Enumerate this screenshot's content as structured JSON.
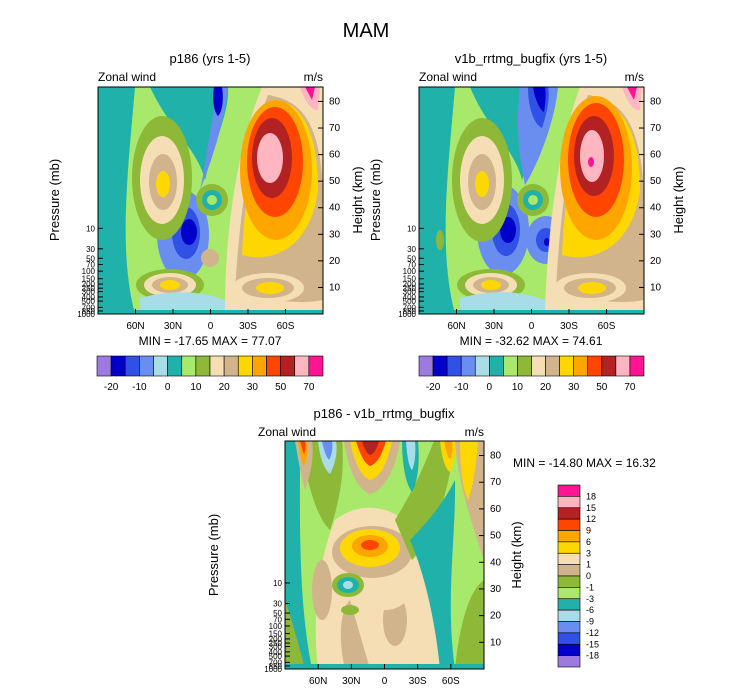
{
  "figure": {
    "title": "MAM"
  },
  "chart_data": [
    {
      "type": "heatmap",
      "title": "p186 (yrs 1-5)",
      "left_label": "Zonal wind",
      "right_label": "m/s",
      "ylabel": "Pressure (mb)",
      "ylabel_right": "Height (km)",
      "x_ticks": [
        "60N",
        "30N",
        "0",
        "30S",
        "60S"
      ],
      "pressure_ticks": [
        "10",
        "30",
        "50",
        "70",
        "100",
        "150",
        "200",
        "250",
        "300",
        "400",
        "500",
        "700",
        "850",
        "1000"
      ],
      "height_ticks": [
        "10",
        "20",
        "30",
        "40",
        "50",
        "60",
        "70",
        "80"
      ],
      "stats": "MIN = -17.65  MAX =  77.07",
      "levels": [
        "-20",
        "-10",
        "0",
        "10",
        "20",
        "30",
        "50",
        "70"
      ],
      "colors": [
        "#9C7AE0",
        "#0000C8",
        "#3050E6",
        "#6A8EF0",
        "#A8DCE6",
        "#20B2AA",
        "#A8E86A",
        "#8DB838",
        "#F5DEB3",
        "#D2B48C",
        "#FFD700",
        "#FFA500",
        "#FF4500",
        "#B22222",
        "#FFB6C1",
        "#FF1493"
      ],
      "features": [
        {
          "kind": "jet",
          "lat": -38,
          "z": 57,
          "value": 77
        },
        {
          "kind": "jet",
          "lat": 43,
          "z": 50,
          "value": 28
        },
        {
          "kind": "jet",
          "lat": 30,
          "z": 10,
          "value": 27
        },
        {
          "kind": "jet",
          "lat": -38,
          "z": 11,
          "value": 24
        },
        {
          "kind": "easterly",
          "lat": 10,
          "z": 30,
          "value": -18
        },
        {
          "kind": "easterly",
          "lat": 0,
          "z": 85,
          "value": -16
        }
      ]
    },
    {
      "type": "heatmap",
      "title": "v1b_rrtmg_bugfix (yrs 1-5)",
      "left_label": "Zonal wind",
      "right_label": "m/s",
      "ylabel": "Pressure (mb)",
      "ylabel_right": "Height (km)",
      "x_ticks": [
        "60N",
        "30N",
        "0",
        "30S",
        "60S"
      ],
      "pressure_ticks": [
        "10",
        "30",
        "50",
        "70",
        "100",
        "150",
        "200",
        "250",
        "300",
        "400",
        "500",
        "700",
        "850",
        "1000"
      ],
      "height_ticks": [
        "10",
        "20",
        "30",
        "40",
        "50",
        "60",
        "70",
        "80"
      ],
      "stats": "MIN = -32.62  MAX =  74.61",
      "levels": [
        "-20",
        "-10",
        "0",
        "10",
        "20",
        "30",
        "50",
        "70"
      ],
      "colors": [
        "#9C7AE0",
        "#0000C8",
        "#3050E6",
        "#6A8EF0",
        "#A8DCE6",
        "#20B2AA",
        "#A8E86A",
        "#8DB838",
        "#F5DEB3",
        "#D2B48C",
        "#FFD700",
        "#FFA500",
        "#FF4500",
        "#B22222",
        "#FFB6C1",
        "#FF1493"
      ],
      "features": [
        {
          "kind": "jet",
          "lat": -38,
          "z": 60,
          "value": 74
        },
        {
          "kind": "jet",
          "lat": 43,
          "z": 52,
          "value": 26
        },
        {
          "kind": "jet",
          "lat": 30,
          "z": 10,
          "value": 27
        },
        {
          "kind": "jet",
          "lat": -38,
          "z": 11,
          "value": 24
        },
        {
          "kind": "easterly",
          "lat": 10,
          "z": 30,
          "value": -20
        },
        {
          "kind": "easterly",
          "lat": -5,
          "z": 28,
          "value": -32
        },
        {
          "kind": "easterly",
          "lat": 0,
          "z": 85,
          "value": -22
        }
      ]
    },
    {
      "type": "heatmap",
      "title": "p186 - v1b_rrtmg_bugfix",
      "left_label": "Zonal wind",
      "right_label": "m/s",
      "ylabel": "Pressure (mb)",
      "ylabel_right": "Height (km)",
      "x_ticks": [
        "60N",
        "30N",
        "0",
        "30S",
        "60S"
      ],
      "pressure_ticks": [
        "10",
        "30",
        "50",
        "70",
        "100",
        "150",
        "200",
        "250",
        "300",
        "400",
        "500",
        "700",
        "850",
        "1000"
      ],
      "height_ticks": [
        "10",
        "20",
        "30",
        "40",
        "50",
        "60",
        "70",
        "80"
      ],
      "stats": "MIN = -14.80  MAX =  16.32",
      "levels": [
        "18",
        "15",
        "12",
        "9",
        "6",
        "3",
        "1",
        "0",
        "-1",
        "-3",
        "-6",
        "-9",
        "-12",
        "-15",
        "-18"
      ],
      "colors": [
        "#FF1493",
        "#FFB6C1",
        "#B22222",
        "#FF4500",
        "#FFA500",
        "#FFD700",
        "#F5DEB3",
        "#D2B48C",
        "#8DB838",
        "#A8E86A",
        "#20B2AA",
        "#A8DCE6",
        "#6A8EF0",
        "#3050E6",
        "#0000C8",
        "#9C7AE0"
      ],
      "features": [
        {
          "kind": "max",
          "lat": 0,
          "z": 85,
          "value": 16
        },
        {
          "kind": "max",
          "lat": 55,
          "z": 84,
          "value": 12
        },
        {
          "kind": "max",
          "lat": 0,
          "z": 50,
          "value": 10
        },
        {
          "kind": "max",
          "lat": -55,
          "z": 75,
          "value": 8
        },
        {
          "kind": "min",
          "lat": 30,
          "z": 82,
          "value": -14
        },
        {
          "kind": "min",
          "lat": -32,
          "z": 82,
          "value": -12
        },
        {
          "kind": "min",
          "lat": 0,
          "z": 35,
          "value": -6
        }
      ]
    }
  ]
}
